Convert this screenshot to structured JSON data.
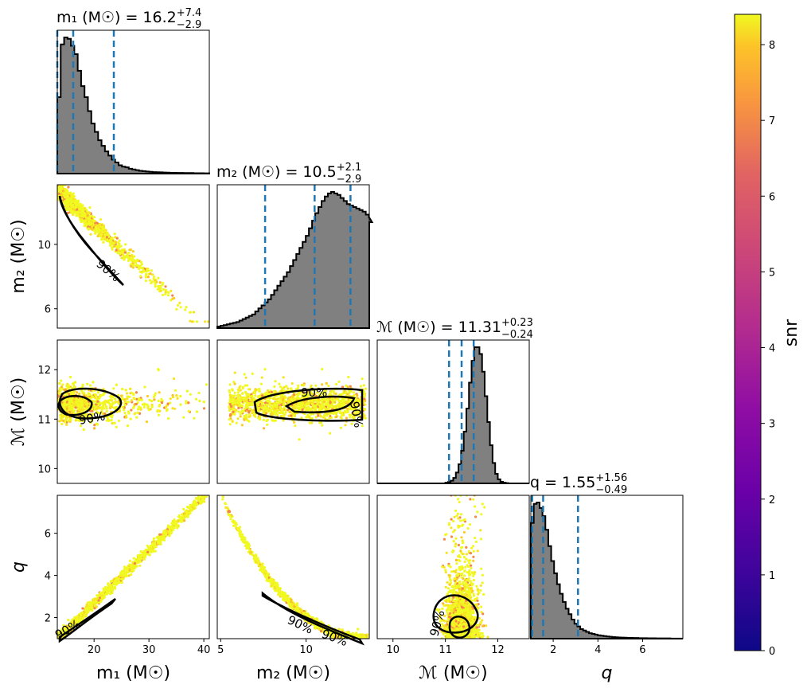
{
  "chart_data": {
    "type": "corner",
    "colorbar": {
      "label": "snr",
      "range": [
        0,
        8.4
      ],
      "ticks": [
        "0",
        "1",
        "2",
        "3",
        "4",
        "5",
        "6",
        "7",
        "8"
      ],
      "colormap": "plasma"
    },
    "params": [
      {
        "key": "m1",
        "label": "m₁ (M☉)",
        "unit": "M☉",
        "median": 16.2,
        "plus": 7.4,
        "minus": 2.9,
        "title": "m₁ (M☉) = 16.2",
        "title_plus": "+7.4",
        "title_minus": "−2.9",
        "range": [
          13.3,
          41
        ],
        "ticks": [
          20,
          30,
          40
        ],
        "quantiles": [
          13.3,
          16.2,
          23.6
        ]
      },
      {
        "key": "m2",
        "label": "m₂ (M☉)",
        "unit": "M☉",
        "median": 10.5,
        "plus": 2.1,
        "minus": 2.9,
        "title": "m₂ (M☉) = 10.5",
        "title_plus": "+2.1",
        "title_minus": "−2.9",
        "range": [
          4.8,
          13.7
        ],
        "ticks": [
          5,
          10
        ],
        "quantiles": [
          7.6,
          10.5,
          12.6
        ]
      },
      {
        "key": "mc",
        "label": "ℳ (M☉)",
        "unit": "M☉",
        "median": 11.31,
        "plus": 0.23,
        "minus": 0.24,
        "title": "ℳ (M☉) = 11.31",
        "title_plus": "+0.23",
        "title_minus": "−0.24",
        "range": [
          9.7,
          12.6
        ],
        "ticks": [
          10,
          11,
          12
        ],
        "quantiles": [
          11.07,
          11.31,
          11.54
        ]
      },
      {
        "key": "q",
        "label": "q",
        "unit": "",
        "median": 1.55,
        "plus": 1.56,
        "minus": 0.49,
        "title": "q = 1.55",
        "title_plus": "+1.56",
        "title_minus": "−0.49",
        "range": [
          1,
          7.8
        ],
        "ticks": [
          2,
          4,
          6
        ],
        "quantiles": [
          1.06,
          1.55,
          3.11
        ]
      }
    ],
    "diag_ticks": {
      "m2": [
        6,
        10
      ],
      "mc": [
        10,
        11,
        12
      ],
      "q": [
        2,
        4,
        6
      ]
    },
    "histograms": {
      "m1": {
        "bins_start": 13.3,
        "bin_width": 0.62,
        "counts": [
          0.55,
          0.93,
          0.98,
          0.97,
          0.92,
          0.86,
          0.74,
          0.63,
          0.55,
          0.45,
          0.36,
          0.3,
          0.24,
          0.2,
          0.16,
          0.13,
          0.1,
          0.08,
          0.06,
          0.05,
          0.045,
          0.035,
          0.03,
          0.025,
          0.02,
          0.018,
          0.015,
          0.013,
          0.011,
          0.01,
          0.009,
          0.008,
          0.007,
          0.006,
          0.006,
          0.005,
          0.005,
          0.004,
          0.004,
          0.004,
          0.003,
          0.003,
          0.003,
          0.002,
          0.002
        ]
      },
      "m2": {
        "bins_start": 4.8,
        "bin_width": 0.185,
        "counts": [
          0.01,
          0.015,
          0.02,
          0.025,
          0.03,
          0.035,
          0.04,
          0.05,
          0.06,
          0.07,
          0.08,
          0.09,
          0.11,
          0.13,
          0.15,
          0.17,
          0.19,
          0.22,
          0.25,
          0.28,
          0.31,
          0.34,
          0.37,
          0.41,
          0.45,
          0.49,
          0.53,
          0.57,
          0.61,
          0.66,
          0.71,
          0.76,
          0.8,
          0.84,
          0.87,
          0.89,
          0.9,
          0.89,
          0.88,
          0.86,
          0.84,
          0.82,
          0.81,
          0.8,
          0.79,
          0.78,
          0.77,
          0.75,
          0.73,
          0.7
        ]
      },
      "mc": {
        "bins_start": 9.7,
        "bin_width": 0.05,
        "counts": [
          0,
          0,
          0,
          0,
          0,
          0,
          0,
          0,
          0,
          0,
          0,
          0,
          0,
          0,
          0,
          0,
          0,
          0,
          0,
          0,
          0,
          0,
          0,
          0,
          0,
          0,
          0.005,
          0.01,
          0.02,
          0.04,
          0.08,
          0.14,
          0.24,
          0.38,
          0.55,
          0.74,
          0.9,
          1.0,
          1.0,
          0.95,
          0.82,
          0.64,
          0.45,
          0.28,
          0.15,
          0.07,
          0.03,
          0.012,
          0.005,
          0.002,
          0,
          0,
          0,
          0,
          0,
          0,
          0,
          0
        ]
      },
      "q": {
        "bins_start": 1.0,
        "bin_width": 0.13,
        "counts": [
          0.85,
          0.99,
          1.0,
          0.96,
          0.9,
          0.8,
          0.68,
          0.57,
          0.48,
          0.4,
          0.33,
          0.27,
          0.22,
          0.18,
          0.14,
          0.11,
          0.09,
          0.07,
          0.06,
          0.05,
          0.04,
          0.035,
          0.03,
          0.025,
          0.022,
          0.019,
          0.016,
          0.014,
          0.012,
          0.01,
          0.009,
          0.008,
          0.007,
          0.006,
          0.006,
          0.005,
          0.005,
          0.004,
          0.004,
          0.004,
          0.003,
          0.003,
          0.003,
          0.002,
          0.002,
          0.002,
          0.002,
          0.002,
          0.001,
          0.001,
          0.001,
          0.001
        ]
      }
    },
    "contour_label": "90%"
  }
}
